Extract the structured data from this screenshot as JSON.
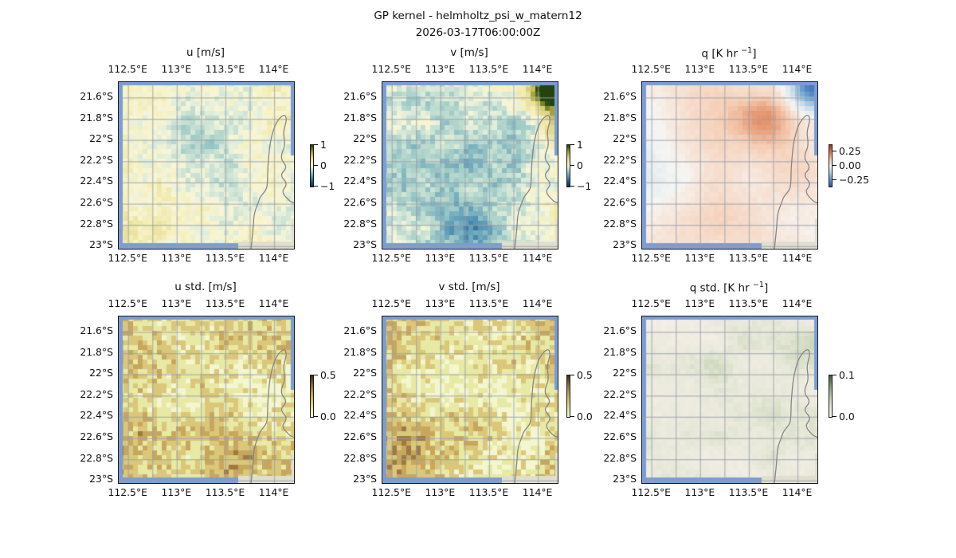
{
  "figure": {
    "title_line1": "GP kernel - helmholtz_psi_w_matern12",
    "title_line2": "2026-03-17T06:00:00Z",
    "background": "#ffffff"
  },
  "chart_data": {
    "type": "heatmap",
    "suptitle": "GP kernel - helmholtz_psi_w_matern12",
    "timestamp": "2026-03-17T06:00:00Z",
    "layout": "2 rows x 3 columns of geographic pixel maps with small bracket colorbars",
    "extent": {
      "lon": [
        112.4,
        114.2
      ],
      "lat": [
        21.45,
        23.02
      ]
    },
    "lon_ticks": {
      "values": [
        112.5,
        113,
        113.5,
        114
      ],
      "labels": [
        "112.5°E",
        "113°E",
        "113.5°E",
        "114°E"
      ]
    },
    "lat_ticks": {
      "values": [
        21.6,
        21.8,
        22,
        22.2,
        22.4,
        22.6,
        22.8,
        23
      ],
      "labels": [
        "21.6°S",
        "21.8°S",
        "22°S",
        "22.2°S",
        "22.4°S",
        "22.6°S",
        "22.8°S",
        "23°S"
      ]
    },
    "grid": {
      "lon_step": 0.25,
      "lat_step": 0.2,
      "color": "#99a0ab",
      "opacity": 0.75
    },
    "basemap": {
      "ocean_color": "#7b9cd4",
      "land_color": "#e0decf",
      "coastline_color": "#868686",
      "region": "North West Cape / Exmouth Gulf coastline"
    },
    "colormaps": {
      "delta_like": [
        [
          0,
          "#10305e"
        ],
        [
          0.12,
          "#1e5f96"
        ],
        [
          0.25,
          "#5e9bb8"
        ],
        [
          0.37,
          "#a7cfc9"
        ],
        [
          0.46,
          "#e0edda"
        ],
        [
          0.5,
          "#f7f5d8"
        ],
        [
          0.54,
          "#f7f2c4"
        ],
        [
          0.63,
          "#ece3a0"
        ],
        [
          0.72,
          "#d6cd7a"
        ],
        [
          0.82,
          "#a8a43c"
        ],
        [
          0.9,
          "#6f7c1d"
        ],
        [
          1,
          "#24430f"
        ]
      ],
      "RdBu_r": [
        [
          0,
          "#2a5fa5"
        ],
        [
          0.18,
          "#6ba2cf"
        ],
        [
          0.35,
          "#c1d8ea"
        ],
        [
          0.47,
          "#eef1f1"
        ],
        [
          0.5,
          "#f6f5f4"
        ],
        [
          0.53,
          "#f7ece4"
        ],
        [
          0.65,
          "#f5cdb4"
        ],
        [
          0.8,
          "#e08a62"
        ],
        [
          1,
          "#b2362b"
        ]
      ],
      "turbid_like": [
        [
          0,
          "#f4f6d0"
        ],
        [
          0.18,
          "#e8e9a5"
        ],
        [
          0.35,
          "#dcc97c"
        ],
        [
          0.55,
          "#c6a55c"
        ],
        [
          0.75,
          "#97713d"
        ],
        [
          1,
          "#3f2d1e"
        ]
      ],
      "pink_green": [
        [
          0,
          "#fbf1ed"
        ],
        [
          0.25,
          "#e8e9da"
        ],
        [
          0.45,
          "#c6d3b4"
        ],
        [
          0.7,
          "#8fa87e"
        ],
        [
          1,
          "#44603c"
        ]
      ]
    },
    "maps": [
      {
        "id": "u",
        "row": 0,
        "col": 0,
        "title": {
          "pre": "u [m/s]",
          "sup": "",
          "post": ""
        },
        "colormap": "delta_like",
        "colorbar": {
          "vmin": -1,
          "vmax": 1,
          "ticks": [
            {
              "label": "1",
              "pos": 0
            },
            {
              "label": "0",
              "pos": 0.5
            },
            {
              "label": "−1",
              "pos": 1
            }
          ]
        },
        "pattern": {
          "seed": 11,
          "type": "diverging",
          "vmax": 1,
          "base": 0.06,
          "noise_amp": 0.12,
          "speckle_amp": 0.1,
          "noise_freq": 8,
          "quant": 0,
          "blobs": [
            [
              0.45,
              0.32,
              0.38,
              -0.22
            ],
            [
              0.12,
              0.78,
              0.35,
              0.14
            ],
            [
              0.55,
              0.75,
              0.3,
              -0.1
            ],
            [
              0.9,
              0.1,
              0.2,
              0.12
            ],
            [
              0.15,
              0.15,
              0.25,
              0.08
            ]
          ]
        }
      },
      {
        "id": "v",
        "row": 0,
        "col": 1,
        "title": {
          "pre": "v [m/s]",
          "sup": "",
          "post": ""
        },
        "colormap": "delta_like",
        "colorbar": {
          "vmin": -1,
          "vmax": 1,
          "ticks": [
            {
              "label": "1",
              "pos": 0
            },
            {
              "label": "0",
              "pos": 0.5
            },
            {
              "label": "−1",
              "pos": 1
            }
          ]
        },
        "pattern": {
          "seed": 22,
          "type": "diverging",
          "vmax": 1,
          "base": 0.04,
          "noise_amp": 0.14,
          "speckle_amp": 0.12,
          "noise_freq": 8,
          "quant": 0,
          "blobs": [
            [
              0.28,
              0.5,
              0.45,
              -0.26
            ],
            [
              0.52,
              0.92,
              0.22,
              -0.38
            ],
            [
              0.96,
              0.06,
              0.12,
              1.4
            ],
            [
              0.98,
              0.3,
              0.09,
              0.5
            ],
            [
              0.75,
              0.45,
              0.3,
              -0.12
            ]
          ]
        }
      },
      {
        "id": "q",
        "row": 0,
        "col": 2,
        "title": {
          "pre": "q [K hr ",
          "sup": "−1",
          "post": "]"
        },
        "colormap": "RdBu_r",
        "colorbar": {
          "vmin": -0.35,
          "vmax": 0.35,
          "ticks": [
            {
              "label": "0.25",
              "pos": 0.15
            },
            {
              "label": "0.00",
              "pos": 0.5
            },
            {
              "label": "−0.25",
              "pos": 0.85
            }
          ]
        },
        "pattern": {
          "seed": 33,
          "type": "diverging",
          "vmax": 0.35,
          "base": 0.005,
          "noise_amp": 0.025,
          "speckle_amp": 0.01,
          "noise_freq": 5,
          "quant": 0,
          "blobs": [
            [
              0.45,
              0.2,
              0.35,
              0.09
            ],
            [
              0.72,
              0.23,
              0.15,
              0.14
            ],
            [
              0.97,
              0.03,
              0.13,
              -0.33
            ],
            [
              0.15,
              0.5,
              0.4,
              -0.045
            ],
            [
              0.5,
              0.8,
              0.3,
              0.05
            ],
            [
              0.92,
              0.5,
              0.18,
              0.06
            ],
            [
              0.25,
              0.9,
              0.3,
              0.04
            ]
          ]
        }
      },
      {
        "id": "u_std",
        "row": 1,
        "col": 0,
        "title": {
          "pre": "u std. [m/s]",
          "sup": "",
          "post": ""
        },
        "colormap": "turbid_like",
        "colorbar": {
          "vmin": 0,
          "vmax": 0.5,
          "ticks": [
            {
              "label": "0.5",
              "pos": 0
            },
            {
              "label": "0.0",
              "pos": 1
            }
          ]
        },
        "pattern": {
          "seed": 44,
          "type": "sequential",
          "vmax": 0.5,
          "base": 0.27,
          "noise_amp": 0.05,
          "speckle_amp": 0.1,
          "noise_freq": 7,
          "quant": 0.09,
          "blobs": [
            [
              0.5,
              0.02,
              0.6,
              -0.16
            ],
            [
              0.85,
              0.55,
              0.28,
              -0.16
            ],
            [
              0.3,
              0.5,
              0.15,
              -0.12
            ],
            [
              0.1,
              0.45,
              0.1,
              -0.1
            ],
            [
              0.4,
              0.85,
              0.15,
              -0.08
            ],
            [
              0.2,
              0.98,
              0.2,
              -0.1
            ]
          ]
        }
      },
      {
        "id": "v_std",
        "row": 1,
        "col": 1,
        "title": {
          "pre": "v std. [m/s]",
          "sup": "",
          "post": ""
        },
        "colormap": "turbid_like",
        "colorbar": {
          "vmin": 0,
          "vmax": 0.5,
          "ticks": [
            {
              "label": "0.5",
              "pos": 0
            },
            {
              "label": "0.0",
              "pos": 1
            }
          ]
        },
        "pattern": {
          "seed": 55,
          "type": "sequential",
          "vmax": 0.5,
          "base": 0.27,
          "noise_amp": 0.05,
          "speckle_amp": 0.1,
          "noise_freq": 7,
          "quant": 0.09,
          "blobs": [
            [
              0.5,
              0.03,
              0.55,
              -0.15
            ],
            [
              0.85,
              0.6,
              0.3,
              -0.17
            ],
            [
              0.35,
              0.45,
              0.18,
              -0.13
            ],
            [
              0.15,
              0.4,
              0.1,
              -0.1
            ],
            [
              0.5,
              0.98,
              0.3,
              -0.12
            ],
            [
              0.75,
              0.9,
              0.15,
              -0.1
            ]
          ]
        }
      },
      {
        "id": "q_std",
        "row": 1,
        "col": 2,
        "title": {
          "pre": "q std. [K hr ",
          "sup": "−1",
          "post": "]"
        },
        "colormap": "pink_green",
        "colorbar": {
          "vmin": 0,
          "vmax": 0.1,
          "ticks": [
            {
              "label": "0.1",
              "pos": 0
            },
            {
              "label": "0.0",
              "pos": 1
            }
          ]
        },
        "pattern": {
          "seed": 66,
          "type": "sequential",
          "vmax": 0.1,
          "base": 0.015,
          "noise_amp": 0.01,
          "speckle_amp": 0.004,
          "noise_freq": 7,
          "quant": 0,
          "blobs": [
            [
              0.2,
              0.35,
              0.3,
              0.01
            ],
            [
              0.6,
              0.25,
              0.3,
              0.008
            ],
            [
              0.9,
              0.15,
              0.15,
              0.02
            ],
            [
              0.5,
              0.6,
              0.3,
              0.006
            ],
            [
              0.85,
              0.75,
              0.2,
              0.012
            ],
            [
              0.1,
              0.8,
              0.25,
              0.01
            ]
          ]
        }
      }
    ]
  }
}
